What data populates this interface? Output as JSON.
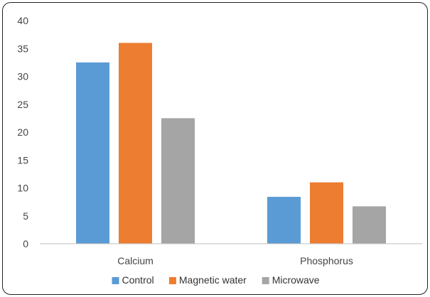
{
  "chart_data": {
    "type": "bar",
    "categories": [
      "Calcium",
      "Phosphorus"
    ],
    "series": [
      {
        "name": "Control",
        "values": [
          32.5,
          8.4
        ],
        "color": "#5b9bd5"
      },
      {
        "name": "Magnetic water",
        "values": [
          36,
          11
        ],
        "color": "#ed7d31"
      },
      {
        "name": "Microwave",
        "values": [
          22.5,
          6.7
        ],
        "color": "#a5a5a5"
      }
    ],
    "title": "",
    "xlabel": "",
    "ylabel": "",
    "ylim": [
      0,
      40
    ],
    "yticks": [
      0,
      5,
      10,
      15,
      20,
      25,
      30,
      35,
      40
    ],
    "grid": false,
    "legend": "bottom"
  }
}
